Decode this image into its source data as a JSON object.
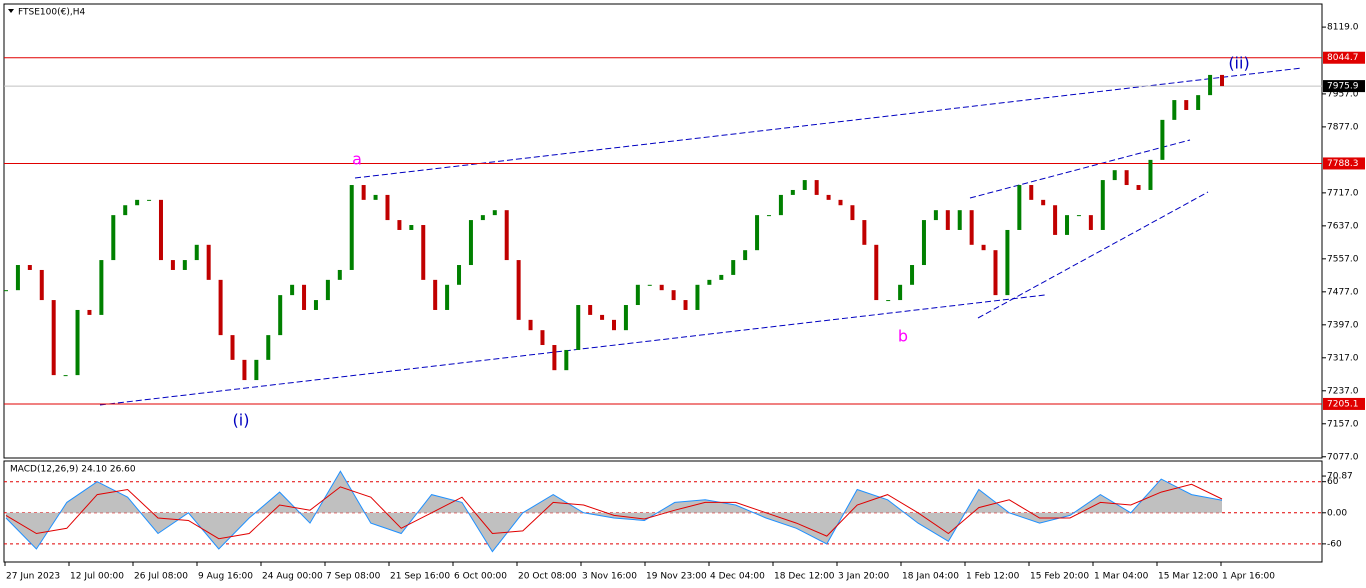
{
  "chart_data": [
    {
      "type": "candle",
      "title": "FTSE100(€),H4",
      "up_color": "#008000",
      "down_color": "#c00000",
      "values": [
        7481,
        7542,
        7530,
        7457,
        7275,
        7275,
        7433,
        7421,
        7554,
        7663,
        7687,
        7700,
        7700,
        7554,
        7530,
        7554,
        7591,
        7506,
        7372,
        7312,
        7263,
        7312,
        7372,
        7469,
        7494,
        7433,
        7457,
        7506,
        7530,
        7736,
        7700,
        7712,
        7651,
        7627,
        7639,
        7506,
        7433,
        7494,
        7542,
        7651,
        7663,
        7675,
        7554,
        7409,
        7384,
        7348,
        7287,
        7336,
        7445,
        7421,
        7409,
        7384,
        7445,
        7494,
        7494,
        7481,
        7457,
        7433,
        7494,
        7506,
        7518,
        7554,
        7578,
        7663,
        7663,
        7712,
        7724,
        7748,
        7712,
        7700,
        7687,
        7651,
        7591,
        7457,
        7457,
        7494,
        7542,
        7651,
        7675,
        7627,
        7675,
        7591,
        7578,
        7469,
        7627,
        7736,
        7700,
        7687,
        7615,
        7663,
        7663,
        7627,
        7748,
        7772,
        7736,
        7724,
        7797,
        7894,
        7942,
        7918,
        7954,
        8003,
        7976
      ],
      "ylim": [
        7074,
        8175
      ],
      "yticks": [
        {
          "value": 8119,
          "label": "8119.0"
        },
        {
          "value": 7957,
          "label": "7957.0"
        },
        {
          "value": 7877,
          "label": "7877.0"
        },
        {
          "value": 7717,
          "label": "7717.0"
        },
        {
          "value": 7637,
          "label": "7637.0"
        },
        {
          "value": 7557,
          "label": "7557.0"
        },
        {
          "value": 7477,
          "label": "7477.0"
        },
        {
          "value": 7397,
          "label": "7397.0"
        },
        {
          "value": 7317,
          "label": "7317.0"
        },
        {
          "value": 7237,
          "label": "7237.0"
        },
        {
          "value": 7157,
          "label": "7157.0"
        },
        {
          "value": 7077,
          "label": "7077.0"
        }
      ],
      "levels": [
        {
          "value": 8044.7,
          "color": "#e00000",
          "label_bg": "#e00000",
          "label_color": "#ffffff"
        },
        {
          "value": 7975.9,
          "color": "#c0c0c0",
          "label_bg": "#000000",
          "label_color": "#ffffff"
        },
        {
          "value": 7788.3,
          "color": "#e00000",
          "label_bg": "#e00000",
          "label_color": "#ffffff"
        },
        {
          "value": 7205.1,
          "color": "#e00000",
          "label_bg": "#e00000",
          "label_color": "#ffffff"
        }
      ],
      "annotations": [
        {
          "text": "a",
          "color": "#ff00ff"
        },
        {
          "text": "b",
          "color": "#ff00ff"
        },
        {
          "text": "(i)",
          "color": "#0000c0"
        },
        {
          "text": "(ii)",
          "color": "#0000c0"
        }
      ],
      "xtick_labels": [
        "27 Jun 2023",
        "12 Jul 00:00",
        "26 Jul 08:00",
        "9 Aug 16:00",
        "24 Aug 00:00",
        "7 Sep 08:00",
        "21 Sep 16:00",
        "6 Oct 00:00",
        "20 Oct 08:00",
        "3 Nov 16:00",
        "19 Nov 23:00",
        "4 Dec 04:00",
        "18 Dec 12:00",
        "3 Jan 20:00",
        "18 Jan 04:00",
        "1 Feb 12:00",
        "15 Feb 20:00",
        "1 Mar 04:00",
        "15 Mar 12:00",
        "1 Apr 16:00"
      ]
    },
    {
      "type": "macd",
      "title": "MACD(12,26,9) 24.10 26.60",
      "series": [
        {
          "name": "MACD",
          "color": "#1e90ff",
          "fill": "#c0c0c0",
          "values": [
            -10,
            -70,
            20,
            60,
            30,
            -40,
            0,
            -70,
            -10,
            40,
            -20,
            80,
            -20,
            -40,
            35,
            20,
            -75,
            0,
            35,
            0,
            -10,
            -15,
            20,
            25,
            15,
            -10,
            -30,
            -60,
            45,
            25,
            -20,
            -55,
            45,
            0,
            -20,
            -5,
            35,
            0,
            65,
            35,
            24.1
          ]
        },
        {
          "name": "Signal",
          "color": "#e00000",
          "values": [
            -5,
            -40,
            -30,
            35,
            45,
            -10,
            -15,
            -50,
            -40,
            15,
            5,
            50,
            30,
            -30,
            0,
            30,
            -40,
            -35,
            20,
            15,
            -5,
            -12,
            5,
            20,
            20,
            0,
            -20,
            -45,
            15,
            35,
            0,
            -40,
            10,
            25,
            -10,
            -10,
            20,
            15,
            40,
            55,
            26.6
          ]
        }
      ],
      "ylim": [
        -95,
        98
      ],
      "yticks": [
        70.87,
        60,
        {
          "value": 0,
          "label": "0.00"
        },
        -60
      ],
      "level_color": "#e00000"
    }
  ]
}
